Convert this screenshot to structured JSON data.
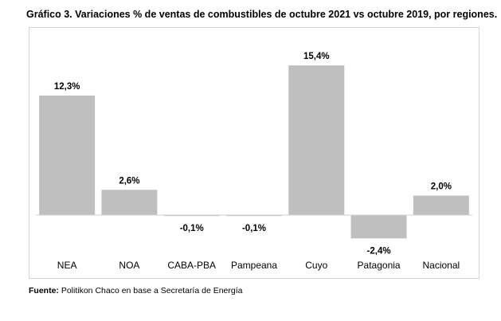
{
  "title": "Gráfico 3. Variaciones % de ventas de combustibles de octubre 2021 vs octubre 2019, por regiones.",
  "source": {
    "label": "Fuente:",
    "text": " Politikon Chaco en base a Secretaría de Energía"
  },
  "colors": {
    "bar": "#bfbfbf",
    "axis": "#d0d0d0",
    "frame": "#d4d4d4"
  },
  "chart_data": {
    "type": "bar",
    "categories": [
      "NEA",
      "NOA",
      "CABA-PBA",
      "Pampeana",
      "Cuyo",
      "Patagonia",
      "Nacional"
    ],
    "values": [
      12.3,
      2.6,
      -0.1,
      -0.1,
      15.4,
      -2.4,
      2.0
    ],
    "value_labels": [
      "12,3%",
      "2,6%",
      "-0,1%",
      "-0,1%",
      "15,4%",
      "-2,4%",
      "2,0%"
    ],
    "title": "Gráfico 3. Variaciones % de ventas de combustibles de octubre 2021 vs octubre 2019, por regiones.",
    "xlabel": "",
    "ylabel": "",
    "ylim": [
      -3,
      16
    ],
    "grid": false,
    "legend": "none"
  }
}
